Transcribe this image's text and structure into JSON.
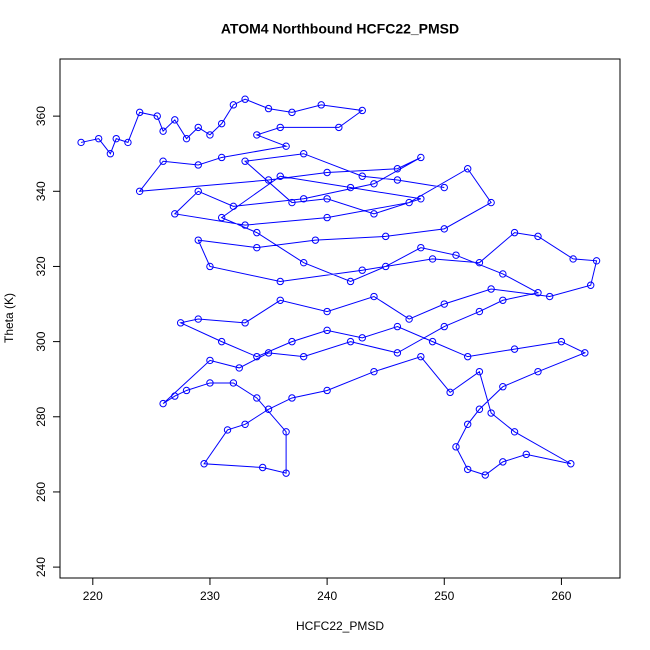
{
  "chart_data": {
    "type": "line",
    "title": "ATOM4 Northbound HCFC22_PMSD",
    "x_label": "HCFC22_PMSD",
    "y_label": "Theta (K)",
    "color": "#0000ff",
    "marker": "circle",
    "xlim": [
      217.2,
      265.0
    ],
    "ylim": [
      237.1,
      375.2
    ],
    "xticks": [
      220,
      230,
      240,
      250,
      260
    ],
    "yticks": [
      240,
      260,
      280,
      300,
      320,
      340,
      360
    ],
    "x": [
      219,
      220.5,
      221.5,
      222,
      223,
      224,
      225.5,
      226,
      227,
      228,
      229,
      230,
      231,
      232,
      233,
      235,
      237,
      239.5,
      243,
      241,
      236,
      234,
      236.5,
      231,
      229,
      226,
      224,
      235,
      240,
      246,
      248,
      244,
      238,
      232,
      229,
      227,
      233,
      240,
      247,
      252,
      254,
      250,
      245,
      239,
      234,
      229,
      230,
      236,
      243,
      249,
      253,
      256,
      258,
      261,
      263,
      262.5,
      259,
      254,
      250,
      247,
      244,
      240,
      236,
      233,
      229,
      227.5,
      231,
      234,
      237,
      240,
      243,
      246,
      249,
      252,
      256,
      260,
      262,
      258,
      255,
      253,
      252,
      251,
      252,
      253.5,
      255,
      257,
      260.8,
      256,
      254,
      253,
      250.5,
      248,
      244,
      240,
      237,
      235,
      233,
      231.5,
      229.5,
      234.5,
      236.5,
      236.5,
      234,
      232,
      230,
      228,
      227,
      226,
      230,
      232.5,
      235,
      238,
      242,
      246,
      250,
      253,
      255,
      258,
      255,
      251,
      248,
      245,
      242,
      238,
      234,
      231,
      236,
      242,
      248,
      244,
      240,
      237,
      233,
      238,
      243,
      246,
      250
    ],
    "values": [
      353,
      354,
      350,
      354,
      353,
      361,
      360,
      356,
      359,
      354,
      357,
      355,
      358,
      363,
      364.5,
      362,
      361,
      363,
      361.5,
      357,
      357,
      355,
      352,
      349,
      347,
      348,
      340,
      343,
      345,
      346,
      349,
      342,
      338,
      336,
      340,
      334,
      331,
      333,
      337,
      346,
      337,
      330,
      328,
      327,
      325,
      327,
      320,
      316,
      319,
      322,
      321,
      329,
      328,
      322,
      321.5,
      315,
      312,
      314,
      310,
      306,
      312,
      308,
      311,
      305,
      306,
      305,
      300,
      296,
      300,
      303,
      301,
      304,
      300,
      296,
      298,
      300,
      297,
      292,
      288,
      282,
      278,
      272,
      266,
      264.5,
      268,
      270,
      267.5,
      276,
      281,
      292,
      286.5,
      296,
      292,
      287,
      285,
      282,
      278,
      276.5,
      267.5,
      266.5,
      265,
      276,
      285,
      289,
      289,
      287,
      285.5,
      283.5,
      295,
      293,
      297,
      296,
      300,
      297,
      304,
      308,
      311,
      313,
      318,
      323,
      325,
      320,
      316,
      321,
      329,
      333,
      344,
      341,
      338,
      334,
      338,
      337,
      348,
      350,
      344,
      343,
      341
    ]
  }
}
